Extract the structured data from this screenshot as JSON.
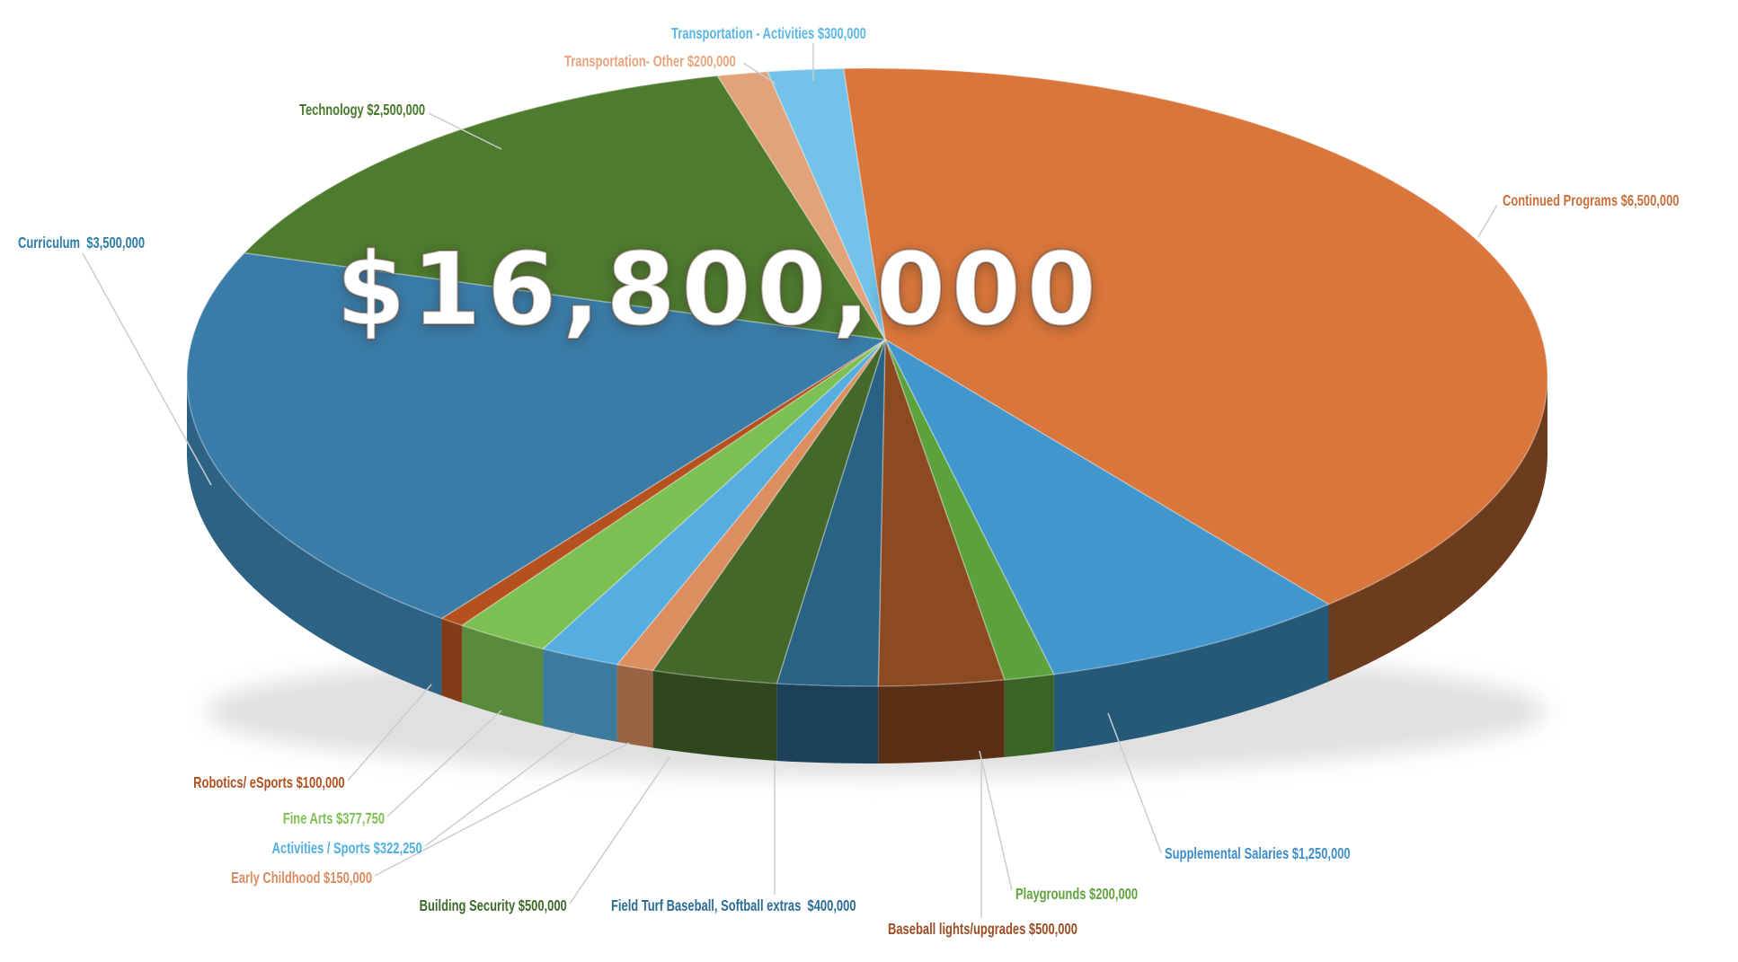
{
  "chart_data": {
    "type": "pie",
    "style": "3d-pie-with-callout-labels",
    "title": "",
    "center_total_label": "$16,800,000",
    "total_value": 16800000,
    "currency": "USD",
    "legend_position": "callout-labels-around-pie",
    "start_angle_deg": -2,
    "direction": "clockwise",
    "categories": [
      "Continued Programs",
      "Supplemental Salaries",
      "Playgrounds",
      "Baseball lights/upgrades",
      "Field Turf Baseball, Softball extras",
      "Building Security",
      "Early Childhood",
      "Activities / Sports",
      "Fine Arts",
      "Robotics/ eSports",
      "Curriculum",
      "Technology",
      "Transportation- Other",
      "Transportation - Activities"
    ],
    "values": [
      6500000,
      1250000,
      200000,
      500000,
      400000,
      500000,
      150000,
      322250,
      377750,
      100000,
      3500000,
      2500000,
      200000,
      300000
    ],
    "slices": [
      {
        "id": "continued-programs",
        "label": "Continued Programs",
        "amount": "$6,500,000",
        "value": 6500000,
        "callout": "Continued Programs $6,500,000",
        "color": "#D9763B",
        "label_color": "#C86F3C"
      },
      {
        "id": "supplemental-salaries",
        "label": "Supplemental Salaries",
        "amount": "$1,250,000",
        "value": 1250000,
        "callout": "Supplemental Salaries $1,250,000",
        "color": "#4196CE",
        "label_color": "#3E8ECB"
      },
      {
        "id": "playgrounds",
        "label": "Playgrounds",
        "amount": "$200,000",
        "value": 200000,
        "callout": "Playgrounds $200,000",
        "color": "#5CA23C",
        "label_color": "#62A33D"
      },
      {
        "id": "baseball-lights",
        "label": "Baseball lights/upgrades",
        "amount": "$500,000",
        "value": 500000,
        "callout": "Baseball lights/upgrades $500,000",
        "color": "#8C4A21",
        "label_color": "#9C4D24"
      },
      {
        "id": "field-turf",
        "label": "Field Turf Baseball, Softball extras",
        "amount": "$400,000",
        "value": 400000,
        "callout": "Field Turf Baseball, Softball extras  $400,000",
        "color": "#2A6285",
        "label_color": "#2C6C94"
      },
      {
        "id": "building-security",
        "label": "Building Security",
        "amount": "$500,000",
        "value": 500000,
        "callout": "Building Security $500,000",
        "color": "#44682A",
        "label_color": "#3E6B2A"
      },
      {
        "id": "early-childhood",
        "label": "Early Childhood",
        "amount": "$150,000",
        "value": 150000,
        "callout": "Early Childhood $150,000",
        "color": "#DD8E61",
        "label_color": "#DC8C60"
      },
      {
        "id": "activities-sports",
        "label": "Activities / Sports",
        "amount": "$322,250",
        "value": 322250,
        "callout": "Activities / Sports $322,250",
        "color": "#55ADE0",
        "label_color": "#4FB0E1"
      },
      {
        "id": "fine-arts",
        "label": "Fine Arts",
        "amount": "$377,750",
        "value": 377750,
        "callout": "Fine Arts $377,750",
        "color": "#7CC053",
        "label_color": "#7DC154"
      },
      {
        "id": "robotics-esports",
        "label": "Robotics/ eSports",
        "amount": "$100,000",
        "value": 100000,
        "callout": "Robotics/ eSports $100,000",
        "color": "#B5511F",
        "label_color": "#B1511F"
      },
      {
        "id": "curriculum",
        "label": "Curriculum",
        "amount": "$3,500,000",
        "value": 3500000,
        "callout": "Curriculum  $3,500,000",
        "color": "#3A7CA8",
        "label_color": "#2E7CA8"
      },
      {
        "id": "technology",
        "label": "Technology",
        "amount": "$2,500,000",
        "value": 2500000,
        "callout": "Technology $2,500,000",
        "color": "#4E7B2E",
        "label_color": "#47792C"
      },
      {
        "id": "transportation-other",
        "label": "Transportation- Other",
        "amount": "$200,000",
        "value": 200000,
        "callout": "Transportation- Other $200,000",
        "color": "#E2A37B",
        "label_color": "#E8A47D"
      },
      {
        "id": "transportation-activities",
        "label": "Transportation - Activities",
        "amount": "$300,000",
        "value": 300000,
        "callout": "Transportation - Activities $300,000",
        "color": "#72C2E9",
        "label_color": "#5BB7E7"
      }
    ],
    "leader_line_color": "#C9CDD1"
  }
}
